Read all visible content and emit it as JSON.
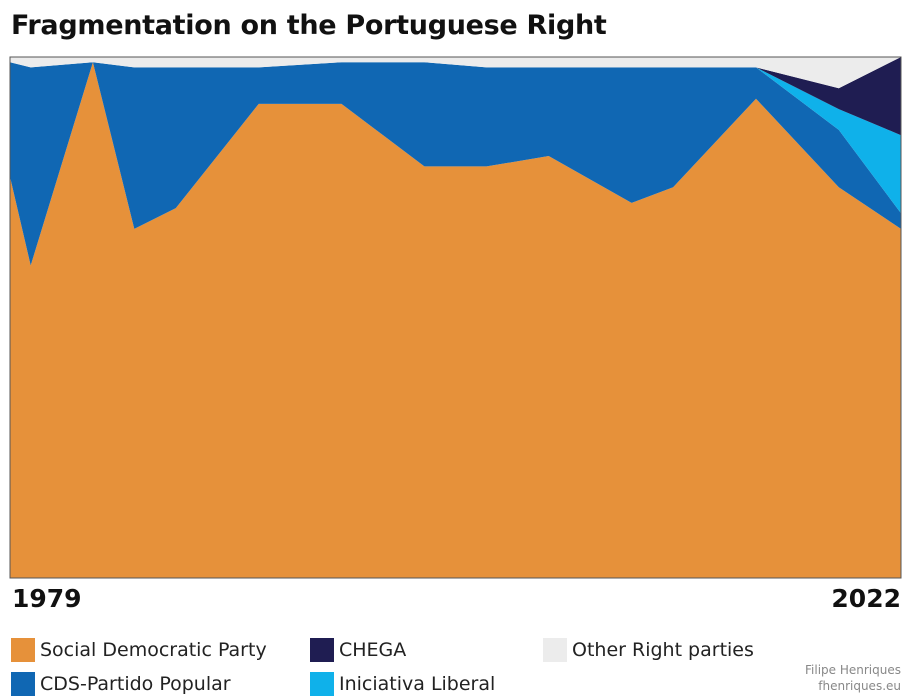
{
  "title": "Fragmentation on the Portuguese Right",
  "x_axis": {
    "start_label": "1979",
    "end_label": "2022"
  },
  "credit": {
    "author": "Filipe Henriques",
    "site": "fhenriques.eu"
  },
  "legend": [
    {
      "label": "Social Democratic Party",
      "color": "#e6913a"
    },
    {
      "label": "CHEGA",
      "color": "#1f1d52"
    },
    {
      "label": "Other Right parties",
      "color": "#ececec"
    },
    {
      "label": "CDS-Partido Popular",
      "color": "#1067b3"
    },
    {
      "label": "Iniciativa Liberal",
      "color": "#0fb1ea"
    }
  ],
  "chart_data": {
    "type": "area",
    "stacked": true,
    "normalized": true,
    "ylim": [
      0,
      100
    ],
    "x": [
      1979,
      1980,
      1983,
      1985,
      1987,
      1991,
      1995,
      1999,
      2002,
      2005,
      2009,
      2011,
      2015,
      2019,
      2022
    ],
    "series": [
      {
        "name": "Social Democratic Party",
        "color": "#e6913a",
        "values": [
          77,
          60,
          99,
          67,
          71,
          91,
          91,
          79,
          79,
          81,
          72,
          75,
          92,
          75,
          67
        ]
      },
      {
        "name": "CDS-Partido Popular",
        "color": "#1067b3",
        "values": [
          22,
          38,
          0,
          31,
          27,
          7,
          8,
          20,
          19,
          17,
          26,
          23,
          6,
          11,
          3
        ]
      },
      {
        "name": "Iniciativa Liberal",
        "color": "#0fb1ea",
        "values": [
          0,
          0,
          0,
          0,
          0,
          0,
          0,
          0,
          0,
          0,
          0,
          0,
          0,
          4,
          15
        ]
      },
      {
        "name": "CHEGA",
        "color": "#1f1d52",
        "values": [
          0,
          0,
          0,
          0,
          0,
          0,
          0,
          0,
          0,
          0,
          0,
          0,
          0,
          4,
          15
        ]
      },
      {
        "name": "Other Right parties",
        "color": "#ececec",
        "values": [
          1,
          2,
          1,
          2,
          2,
          2,
          1,
          1,
          2,
          2,
          2,
          2,
          2,
          6,
          0
        ]
      }
    ]
  }
}
